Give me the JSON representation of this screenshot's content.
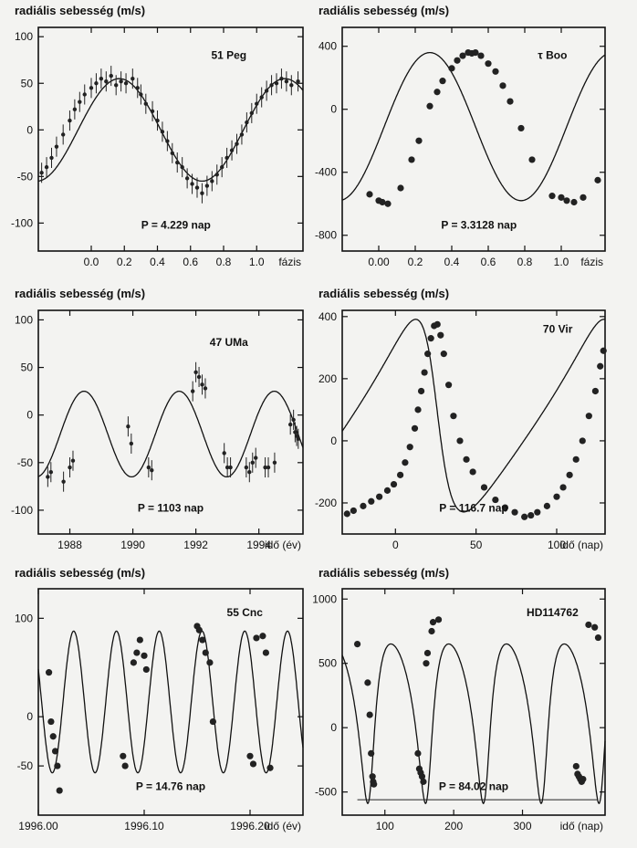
{
  "chart_data": [
    {
      "type": "scatter",
      "ylabel": "radiális sebesség (m/s)",
      "name": "51 Peg",
      "period": "P = 4.229 nap",
      "xlabel": "fázis",
      "xlim": [
        -0.32,
        1.28
      ],
      "ylim": [
        -130,
        110
      ],
      "xticks": [
        0.0,
        0.2,
        0.4,
        0.6,
        0.8,
        1.0
      ],
      "xtick_labels": [
        "0.0",
        "0.2",
        "0.4",
        "0.6",
        "0.8",
        "1.0"
      ],
      "yticks": [
        100,
        50,
        0,
        -50,
        -100
      ],
      "model": {
        "kind": "sine",
        "K": 55,
        "P": 1,
        "phase": 0.17,
        "offset": 0
      },
      "x": [
        -0.3,
        -0.27,
        -0.24,
        -0.21,
        -0.17,
        -0.13,
        -0.1,
        -0.07,
        -0.04,
        0.0,
        0.03,
        0.06,
        0.09,
        0.12,
        0.15,
        0.18,
        0.21,
        0.25,
        0.28,
        0.3,
        0.33,
        0.37,
        0.4,
        0.43,
        0.46,
        0.49,
        0.52,
        0.55,
        0.58,
        0.61,
        0.64,
        0.67,
        0.7,
        0.73,
        0.76,
        0.79,
        0.82,
        0.85,
        0.88,
        0.91,
        0.94,
        0.97,
        1.0,
        1.03,
        1.06,
        1.09,
        1.12,
        1.15,
        1.18,
        1.21,
        1.25
      ],
      "y": [
        -46,
        -40,
        -30,
        -18,
        -5,
        10,
        22,
        30,
        38,
        45,
        50,
        55,
        52,
        58,
        48,
        52,
        50,
        55,
        45,
        38,
        28,
        20,
        10,
        -2,
        -12,
        -25,
        -35,
        -40,
        -52,
        -58,
        -62,
        -68,
        -60,
        -55,
        -48,
        -40,
        -30,
        -22,
        -15,
        -5,
        8,
        18,
        28,
        35,
        42,
        48,
        50,
        55,
        52,
        48,
        52
      ],
      "error_bars": true
    },
    {
      "type": "scatter",
      "ylabel": "radiális sebesség (m/s)",
      "name": "τ Boo",
      "period": "P = 3.3128 nap",
      "xlabel": "fázis",
      "xlim": [
        -0.2,
        1.24
      ],
      "ylim": [
        -900,
        520
      ],
      "xticks": [
        0.0,
        0.2,
        0.4,
        0.6,
        0.8,
        1.0
      ],
      "xtick_labels": [
        "0.00",
        "0.2",
        "0.4",
        "0.6",
        "0.8",
        "1.0"
      ],
      "yticks": [
        400,
        0,
        -400,
        -800
      ],
      "model": {
        "kind": "sine",
        "K": 470,
        "P": 1,
        "phase": 0.28,
        "offset": -110
      },
      "x": [
        -0.05,
        0.0,
        0.02,
        0.05,
        0.12,
        0.18,
        0.22,
        0.28,
        0.32,
        0.35,
        0.4,
        0.43,
        0.46,
        0.49,
        0.51,
        0.53,
        0.56,
        0.6,
        0.64,
        0.68,
        0.72,
        0.78,
        0.84,
        0.95,
        1.0,
        1.03,
        1.07,
        1.12,
        1.2
      ],
      "y": [
        -540,
        -580,
        -590,
        -600,
        -500,
        -320,
        -200,
        20,
        110,
        180,
        260,
        310,
        340,
        360,
        355,
        360,
        340,
        290,
        240,
        150,
        50,
        -120,
        -320,
        -550,
        -560,
        -580,
        -590,
        -560,
        -450
      ],
      "error_bars": false
    },
    {
      "type": "scatter",
      "ylabel": "radiális sebesség (m/s)",
      "name": "47 UMa",
      "period": "P = 1103 nap",
      "xlabel": "idő (év)",
      "xlim": [
        1987.0,
        1995.4
      ],
      "ylim": [
        -125,
        110
      ],
      "xticks": [
        1988,
        1990,
        1992,
        1994
      ],
      "xtick_labels": [
        "1988",
        "1990",
        "1992",
        "1994"
      ],
      "yticks": [
        100,
        50,
        0,
        -50,
        -100
      ],
      "model": {
        "kind": "sine",
        "K": 45,
        "P": 3.02,
        "phase": 1988.45,
        "offset": -20
      },
      "x": [
        1987.3,
        1987.4,
        1987.8,
        1988.0,
        1988.1,
        1989.85,
        1989.95,
        1990.5,
        1990.6,
        1991.9,
        1992.0,
        1992.1,
        1992.2,
        1992.3,
        1992.9,
        1993.0,
        1993.1,
        1993.6,
        1993.7,
        1993.8,
        1993.9,
        1994.2,
        1994.3,
        1994.5,
        1995.0,
        1995.1,
        1995.15,
        1995.2,
        1995.25
      ],
      "y": [
        -65,
        -60,
        -70,
        -55,
        -48,
        -12,
        -30,
        -55,
        -58,
        25,
        45,
        40,
        32,
        28,
        -40,
        -55,
        -55,
        -55,
        -60,
        -50,
        -45,
        -55,
        -55,
        -50,
        -10,
        -5,
        -18,
        -22,
        -25
      ],
      "error_bars": true
    },
    {
      "type": "scatter",
      "ylabel": "radiális sebesség (m/s)",
      "name": "70 Vir",
      "period": "P = 116.7 nap",
      "xlabel": "idő (nap)",
      "xlim": [
        -33,
        130
      ],
      "ylim": [
        -300,
        420
      ],
      "xticks": [
        0,
        50,
        100
      ],
      "xtick_labels": [
        "0",
        "50",
        "100"
      ],
      "yticks": [
        400,
        200,
        0,
        -200
      ],
      "model": {
        "kind": "eccentric",
        "K": 310,
        "P": 116.7,
        "e": 0.4,
        "tp": 25,
        "omega": 1.4,
        "offset": 60
      },
      "x": [
        -30,
        -26,
        -20,
        -15,
        -10,
        -5,
        -1,
        3,
        6,
        9,
        12,
        14,
        16,
        18,
        20,
        22,
        24,
        26,
        28,
        30,
        33,
        36,
        40,
        44,
        48,
        55,
        62,
        68,
        74,
        80,
        84,
        88,
        94,
        100,
        104,
        108,
        112,
        116,
        120,
        124,
        127,
        129
      ],
      "y": [
        -235,
        -225,
        -210,
        -195,
        -180,
        -160,
        -140,
        -110,
        -70,
        -20,
        40,
        100,
        160,
        220,
        280,
        330,
        370,
        375,
        340,
        280,
        180,
        80,
        0,
        -60,
        -100,
        -150,
        -190,
        -215,
        -230,
        -245,
        -240,
        -230,
        -210,
        -180,
        -150,
        -110,
        -60,
        0,
        80,
        160,
        240,
        290
      ],
      "error_bars": false
    },
    {
      "type": "scatter",
      "ylabel": "radiális sebesség (m/s)",
      "name": "55 Cnc",
      "period": "P = 14.76 nap",
      "xlabel": "idő (év)",
      "xlim": [
        1996.0,
        1996.25
      ],
      "ylim": [
        -100,
        130
      ],
      "xticks": [
        1996.0,
        1996.1,
        1996.2
      ],
      "xtick_labels": [
        "1996.00",
        "1996.10",
        "1996.20"
      ],
      "yticks": [
        100,
        0,
        -50
      ],
      "model": {
        "kind": "sine",
        "K": 72,
        "P": 0.0404,
        "phase": 1995.993,
        "offset": 15
      },
      "x": [
        1996.01,
        1996.012,
        1996.014,
        1996.016,
        1996.018,
        1996.02,
        1996.08,
        1996.082,
        1996.09,
        1996.093,
        1996.096,
        1996.1,
        1996.102,
        1996.15,
        1996.152,
        1996.155,
        1996.158,
        1996.162,
        1996.165,
        1996.2,
        1996.203,
        1996.206,
        1996.212,
        1996.215,
        1996.219
      ],
      "y": [
        45,
        -5,
        -20,
        -35,
        -50,
        -75,
        -40,
        -50,
        55,
        65,
        78,
        62,
        48,
        92,
        88,
        78,
        65,
        55,
        -5,
        -40,
        -48,
        80,
        82,
        65,
        -52
      ],
      "error_bars": false
    },
    {
      "type": "scatter",
      "ylabel": "radiális sebesség (m/s)",
      "name": "HD114762",
      "period": "P = 84.02 nap",
      "xlabel": "idő (nap)",
      "xlim": [
        38,
        420
      ],
      "ylim": [
        -680,
        1080
      ],
      "xticks": [
        100,
        200,
        300
      ],
      "xtick_labels": [
        "100",
        "200",
        "300"
      ],
      "yticks": [
        1000,
        500,
        0,
        -500
      ],
      "model": {
        "kind": "eccentric",
        "K": 620,
        "P": 84.02,
        "e": 0.34,
        "tp": 78,
        "omega": 3.6,
        "offset": 220
      },
      "x": [
        60,
        75,
        78,
        80,
        82,
        83,
        84,
        148,
        150,
        152,
        154,
        156,
        160,
        162,
        168,
        170,
        178,
        378,
        380,
        382,
        384,
        386,
        388,
        396,
        405,
        410
      ],
      "y": [
        650,
        350,
        100,
        -200,
        -380,
        -420,
        -440,
        -200,
        -320,
        -350,
        -380,
        -420,
        500,
        580,
        750,
        820,
        840,
        -300,
        -360,
        -380,
        -400,
        -420,
        -400,
        800,
        780,
        700
      ],
      "error_bars": false
    }
  ]
}
